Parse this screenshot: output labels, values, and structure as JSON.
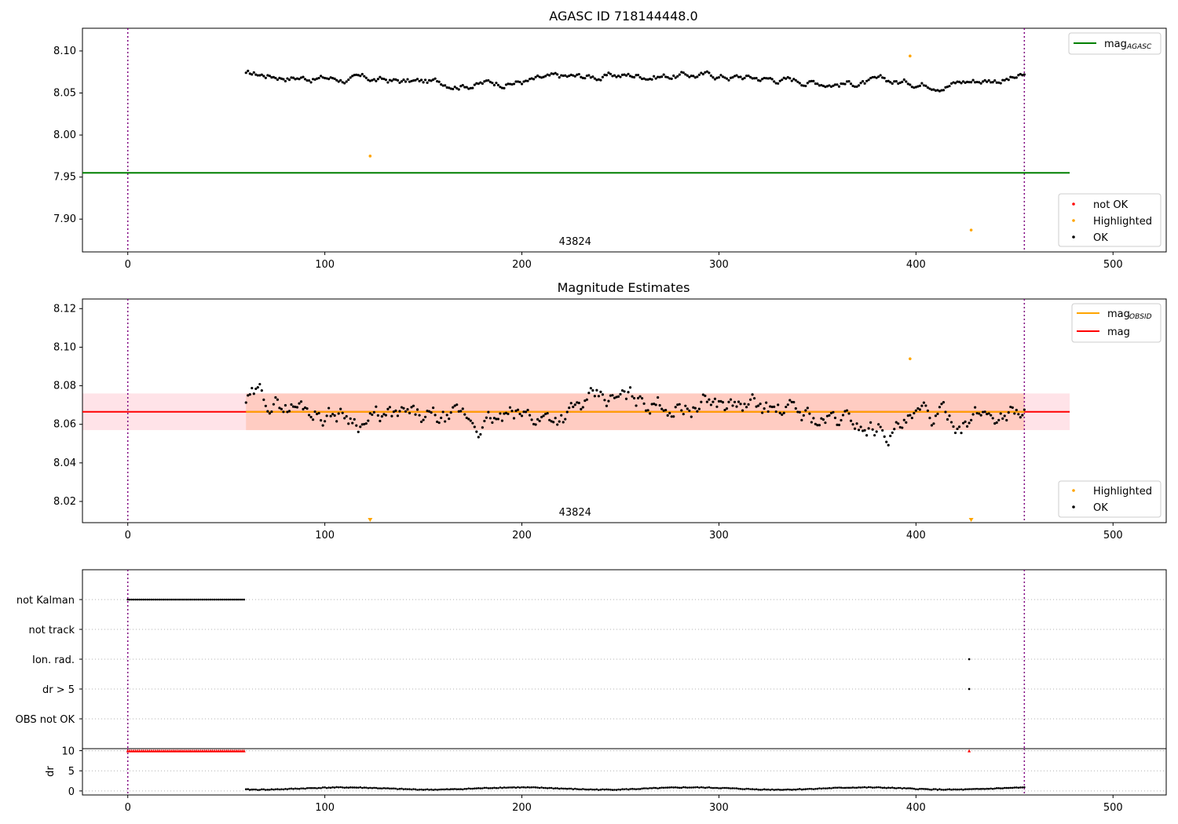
{
  "chart_data": [
    {
      "panel": "top",
      "type": "scatter",
      "title": "AGASC ID 718144448.0",
      "xlim": [
        -23,
        527
      ],
      "ylim": [
        7.861,
        8.127
      ],
      "xticks": [
        0,
        100,
        200,
        300,
        400,
        500
      ],
      "yticks": [
        7.9,
        7.95,
        8.0,
        8.05,
        8.1
      ],
      "ytick_labels": [
        "7.90",
        "7.95",
        "8.00",
        "8.05",
        "8.10"
      ],
      "obsid_label": "43824",
      "obsid_label_x": 227,
      "vlines": [
        0,
        455
      ],
      "series": [
        {
          "name": "not OK",
          "color": "#ff0000",
          "points": []
        },
        {
          "name": "Highlighted",
          "color": "#ffa500",
          "points": [
            [
              123,
              7.975
            ],
            [
              397,
              8.094
            ],
            [
              428,
              7.887
            ]
          ]
        },
        {
          "name": "OK",
          "color": "#000000",
          "start": 60,
          "end": 455,
          "mean": 8.067,
          "jitter": 0.006
        }
      ],
      "hlines": [
        {
          "name": "mag",
          "sub": "AGASC",
          "y": 7.955,
          "x_range": [
            -23,
            478
          ],
          "color": "#008000"
        }
      ],
      "legend_line": {
        "text": "mag",
        "sub": "AGASC",
        "color": "#008000"
      },
      "legend_points": [
        {
          "label": "not OK",
          "color": "#ff0000"
        },
        {
          "label": "Highlighted",
          "color": "#ffa500"
        },
        {
          "label": "OK",
          "color": "#000000"
        }
      ]
    },
    {
      "panel": "middle",
      "type": "scatter",
      "title": "Magnitude Estimates",
      "xlim": [
        -23,
        527
      ],
      "ylim": [
        8.009,
        8.125
      ],
      "xticks": [
        0,
        100,
        200,
        300,
        400,
        500
      ],
      "yticks": [
        8.02,
        8.04,
        8.06,
        8.08,
        8.1,
        8.12
      ],
      "ytick_labels": [
        "8.02",
        "8.04",
        "8.06",
        "8.08",
        "8.10",
        "8.12"
      ],
      "obsid_label": "43824",
      "obsid_label_x": 227,
      "vlines": [
        0,
        455
      ],
      "bands": [
        {
          "y": [
            8.057,
            8.076
          ],
          "x_range": [
            -23,
            478
          ],
          "color": "#ffc0cb",
          "opacity": 0.45
        },
        {
          "y": [
            8.057,
            8.076
          ],
          "x_range": [
            60,
            455
          ],
          "color": "#ffa07a",
          "opacity": 0.35
        }
      ],
      "hlines": [
        {
          "name": "mag",
          "y": 8.0665,
          "x_range": [
            -23,
            478
          ],
          "color": "#ff0000"
        },
        {
          "name": "mag",
          "sub": "OBSID",
          "y": 8.0665,
          "x_range": [
            60,
            455
          ],
          "color": "#ffa500"
        }
      ],
      "markers_bottom": [
        123,
        428
      ],
      "series": [
        {
          "name": "Highlighted",
          "color": "#ffa500",
          "points": [
            [
              397,
              8.094
            ]
          ]
        },
        {
          "name": "OK",
          "color": "#000000",
          "start": 60,
          "end": 455,
          "mean": 8.066,
          "jitter": 0.008
        }
      ],
      "legend_lines": [
        {
          "text": "mag",
          "sub": "OBSID",
          "color": "#ffa500"
        },
        {
          "text": "mag",
          "sub": "",
          "color": "#ff0000"
        }
      ],
      "legend_points": [
        {
          "label": "Highlighted",
          "color": "#ffa500"
        },
        {
          "label": "OK",
          "color": "#000000"
        }
      ]
    },
    {
      "panel": "flags",
      "type": "scatter",
      "xlim": [
        -23,
        527
      ],
      "categories": [
        "not Kalman",
        "not track",
        "Ion. rad.",
        "dr > 5",
        "OBS not OK"
      ],
      "grid": true,
      "vlines": [
        0,
        455
      ],
      "flag_points": {
        "not Kalman": {
          "start": 0,
          "end": 59
        },
        "Ion. rad.": [
          427
        ],
        "dr > 5": [
          427
        ]
      }
    },
    {
      "panel": "dr",
      "type": "scatter",
      "xlim": [
        -23,
        527
      ],
      "ylim": [
        -1,
        10.5
      ],
      "ylabel": "dr",
      "yticks": [
        0,
        5,
        10
      ],
      "xticks": [
        0,
        100,
        200,
        300,
        400,
        500
      ],
      "vlines": [
        0,
        455
      ],
      "capped": {
        "y": 10,
        "start": 0,
        "end": 59,
        "extra": [
          427
        ],
        "color": "#ff0000"
      },
      "series": [
        {
          "name": "OK",
          "color": "#000000",
          "start": 60,
          "end": 455,
          "mean": 0.6,
          "amp": 0.45
        }
      ]
    }
  ]
}
